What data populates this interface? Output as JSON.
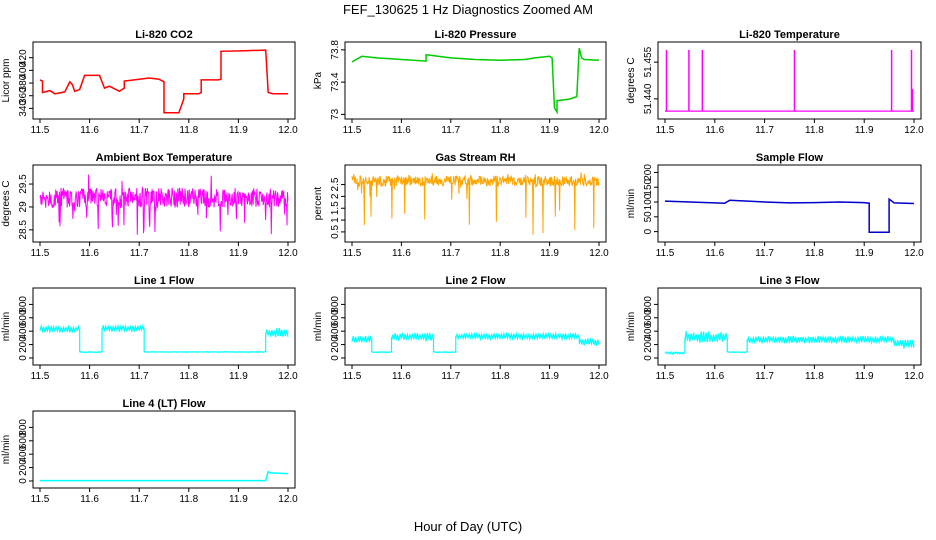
{
  "figure": {
    "title": "FEF_130625 1 Hz Diagnostics Zoomed AM",
    "xlabel": "Hour of Day (UTC)"
  },
  "chart_data": [
    {
      "id": "co2",
      "type": "line",
      "title": "Li-820 CO2",
      "ylabel": "Licor ppm",
      "color": "#ff0000",
      "xlim": [
        11.5,
        12.0
      ],
      "xticks": [
        11.5,
        11.6,
        11.7,
        11.8,
        11.9,
        12.0
      ],
      "ylim": [
        328,
        440
      ],
      "yticks": [
        340,
        360,
        380,
        400,
        420
      ],
      "series": [
        {
          "x": [
            11.5,
            11.505,
            11.505,
            11.52,
            11.53,
            11.55,
            11.56,
            11.565,
            11.57,
            11.58,
            11.59,
            11.59,
            11.62,
            11.63,
            11.64,
            11.66,
            11.67,
            11.67,
            11.69,
            11.7,
            11.72,
            11.74,
            11.75,
            11.75,
            11.78,
            11.79,
            11.79,
            11.82,
            11.825,
            11.825,
            11.86,
            11.865,
            11.865,
            11.915,
            11.955,
            11.96,
            11.97,
            11.99,
            12.0
          ],
          "y": [
            385,
            383,
            365,
            368,
            363,
            366,
            382,
            378,
            367,
            370,
            392,
            392,
            392,
            372,
            375,
            367,
            372,
            383,
            385,
            386,
            388,
            386,
            382,
            333,
            333,
            355,
            363,
            363,
            365,
            385,
            385,
            386,
            430,
            431,
            432,
            365,
            363,
            363,
            363
          ]
        }
      ]
    },
    {
      "id": "pressure",
      "type": "line",
      "title": "Li-820 Pressure",
      "ylabel": "kPa",
      "color": "#00cc00",
      "xlim": [
        11.5,
        12.0
      ],
      "xticks": [
        11.5,
        11.6,
        11.7,
        11.8,
        11.9,
        12.0
      ],
      "ylim": [
        72.98,
        73.86
      ],
      "yticks": [
        73.0,
        73.4,
        73.8
      ],
      "series": [
        {
          "x": [
            11.5,
            11.52,
            11.55,
            11.6,
            11.65,
            11.65,
            11.7,
            11.75,
            11.8,
            11.85,
            11.87,
            11.9,
            11.905,
            11.91,
            11.915,
            11.915,
            11.94,
            11.955,
            11.96,
            11.965,
            11.97,
            12.0
          ],
          "y": [
            73.65,
            73.72,
            73.7,
            73.68,
            73.66,
            73.74,
            73.7,
            73.68,
            73.67,
            73.68,
            73.7,
            73.72,
            73.7,
            73.08,
            73.03,
            73.17,
            73.19,
            73.22,
            73.82,
            73.7,
            73.68,
            73.67
          ]
        }
      ]
    },
    {
      "id": "temperature",
      "type": "line",
      "title": "Li-820 Temperature",
      "ylabel": "degrees C",
      "color": "#ff00ff",
      "xlim": [
        11.5,
        12.0
      ],
      "xticks": [
        11.5,
        11.6,
        11.7,
        11.8,
        11.9,
        12.0
      ],
      "ylim": [
        51.433,
        51.462
      ],
      "yticks": [
        51.44,
        51.455
      ],
      "yticklabels": [
        "51.440",
        "51.455"
      ],
      "baseline": 51.435,
      "spikes": [
        11.503,
        11.548,
        11.575,
        11.76,
        11.955,
        11.995
      ],
      "spike_top": 51.46,
      "spike_low": [
        {
          "x": 11.997,
          "y": 51.444
        }
      ]
    },
    {
      "id": "ambient",
      "type": "band",
      "title": "Ambient Box Temperature",
      "ylabel": "degrees C",
      "color": "#ff00ff",
      "xlim": [
        11.5,
        12.0
      ],
      "xticks": [
        11.5,
        11.6,
        11.7,
        11.8,
        11.9,
        12.0
      ],
      "ylim": [
        28.3,
        29.85
      ],
      "yticks": [
        28.5,
        29.0,
        29.5
      ],
      "band": {
        "center": 29.2,
        "spread": 0.22,
        "min": 28.37,
        "max": 29.8
      }
    },
    {
      "id": "rh",
      "type": "band",
      "title": "Gas Stream RH",
      "ylabel": "percent",
      "color": "#ffa500",
      "xlim": [
        11.5,
        12.0
      ],
      "xticks": [
        11.5,
        11.6,
        11.7,
        11.8,
        11.9,
        12.0
      ],
      "ylim": [
        0.2,
        3.2
      ],
      "yticks": [
        0.5,
        1.0,
        1.5,
        2.0,
        2.5
      ],
      "band": {
        "center": 2.65,
        "spread": 0.22,
        "min": 0.3,
        "max": 3.05
      }
    },
    {
      "id": "sample",
      "type": "line",
      "title": "Sample Flow",
      "ylabel": "ml/min",
      "color": "#0000cc",
      "xlim": [
        11.5,
        12.0
      ],
      "xticks": [
        11.5,
        11.6,
        11.7,
        11.8,
        11.9,
        12.0
      ],
      "ylim": [
        -25,
        215
      ],
      "yticks": [
        0,
        50,
        100,
        150,
        200
      ],
      "series": [
        {
          "x": [
            11.5,
            11.55,
            11.6,
            11.62,
            11.63,
            11.7,
            11.75,
            11.8,
            11.85,
            11.9,
            11.91,
            11.91,
            11.945,
            11.95,
            11.95,
            11.96,
            12.0
          ],
          "y": [
            103,
            100,
            97,
            96,
            106,
            100,
            97,
            98,
            100,
            98,
            96,
            -2,
            -2,
            -2,
            110,
            97,
            95
          ]
        }
      ]
    },
    {
      "id": "line1",
      "type": "band",
      "title": "Line 1 Flow",
      "ylabel": "ml/min",
      "color": "#00ffff",
      "xlim": [
        11.5,
        12.0
      ],
      "xticks": [
        11.5,
        11.6,
        11.7,
        11.8,
        11.9,
        12.0
      ],
      "ylim": [
        -60,
        1000
      ],
      "yticks": [
        0,
        200,
        400,
        600,
        800
      ],
      "segments": [
        {
          "x0": 11.5,
          "x1": 11.58,
          "lo": 380,
          "hi": 480
        },
        {
          "x0": 11.58,
          "x1": 11.625,
          "lo": 80,
          "hi": 95
        },
        {
          "x0": 11.625,
          "x1": 11.71,
          "lo": 390,
          "hi": 490
        },
        {
          "x0": 11.71,
          "x1": 11.955,
          "lo": 85,
          "hi": 95
        },
        {
          "x0": 11.955,
          "x1": 12.0,
          "lo": 310,
          "hi": 450
        }
      ]
    },
    {
      "id": "line2",
      "type": "band",
      "title": "Line 2 Flow",
      "ylabel": "ml/min",
      "color": "#00ffff",
      "xlim": [
        11.5,
        12.0
      ],
      "xticks": [
        11.5,
        11.6,
        11.7,
        11.8,
        11.9,
        12.0
      ],
      "ylim": [
        -60,
        1000
      ],
      "yticks": [
        0,
        200,
        400,
        600,
        800
      ],
      "segments": [
        {
          "x0": 11.5,
          "x1": 11.54,
          "lo": 230,
          "hi": 330
        },
        {
          "x0": 11.54,
          "x1": 11.58,
          "lo": 80,
          "hi": 95
        },
        {
          "x0": 11.58,
          "x1": 11.665,
          "lo": 250,
          "hi": 380
        },
        {
          "x0": 11.665,
          "x1": 11.71,
          "lo": 80,
          "hi": 95
        },
        {
          "x0": 11.71,
          "x1": 11.96,
          "lo": 280,
          "hi": 370
        },
        {
          "x0": 11.96,
          "x1": 12.0,
          "lo": 180,
          "hi": 300
        }
      ]
    },
    {
      "id": "line3",
      "type": "band",
      "title": "Line 3 Flow",
      "ylabel": "ml/min",
      "color": "#00ffff",
      "xlim": [
        11.5,
        12.0
      ],
      "xticks": [
        11.5,
        11.6,
        11.7,
        11.8,
        11.9,
        12.0
      ],
      "ylim": [
        -60,
        1000
      ],
      "yticks": [
        0,
        200,
        400,
        600,
        800
      ],
      "segments": [
        {
          "x0": 11.5,
          "x1": 11.54,
          "lo": 60,
          "hi": 90
        },
        {
          "x0": 11.54,
          "x1": 11.625,
          "lo": 220,
          "hi": 400
        },
        {
          "x0": 11.625,
          "x1": 11.665,
          "lo": 80,
          "hi": 95
        },
        {
          "x0": 11.665,
          "x1": 11.96,
          "lo": 220,
          "hi": 330
        },
        {
          "x0": 11.96,
          "x1": 12.0,
          "lo": 140,
          "hi": 280
        }
      ]
    },
    {
      "id": "line4",
      "type": "line",
      "title": "Line 4 (LT) Flow",
      "ylabel": "ml/min",
      "color": "#00ffff",
      "xlim": [
        11.5,
        12.0
      ],
      "xticks": [
        11.5,
        11.6,
        11.7,
        11.8,
        11.9,
        12.0
      ],
      "ylim": [
        -60,
        1000
      ],
      "yticks": [
        0,
        200,
        400,
        600,
        800
      ],
      "series": [
        {
          "x": [
            11.5,
            11.6,
            11.7,
            11.8,
            11.9,
            11.955,
            11.96,
            11.965,
            12.0
          ],
          "y": [
            5,
            5,
            5,
            5,
            5,
            5,
            140,
            120,
            110
          ]
        }
      ]
    }
  ]
}
